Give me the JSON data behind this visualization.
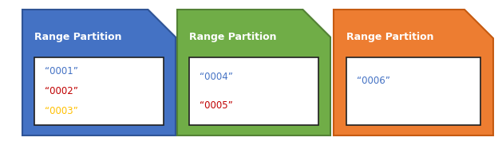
{
  "cards": [
    {
      "color": "#4472C4",
      "edge_color": "#2F5496",
      "title": "Range Partition",
      "items": [
        "“0001”",
        "“0002”",
        "“0003”"
      ],
      "item_colors": [
        "#4472C4",
        "#C00000",
        "#FFC000"
      ]
    },
    {
      "color": "#70AD47",
      "edge_color": "#538135",
      "title": "Range Partition",
      "items": [
        "“0004”",
        "“0005”"
      ],
      "item_colors": [
        "#4472C4",
        "#C00000"
      ]
    },
    {
      "color": "#ED7D31",
      "edge_color": "#C55A11",
      "title": "Range Partition",
      "items": [
        "“0006”"
      ],
      "item_colors": [
        "#4472C4"
      ]
    }
  ],
  "bg_color": "#FFFFFF",
  "title_fontsize": 9,
  "item_fontsize": 8.5
}
